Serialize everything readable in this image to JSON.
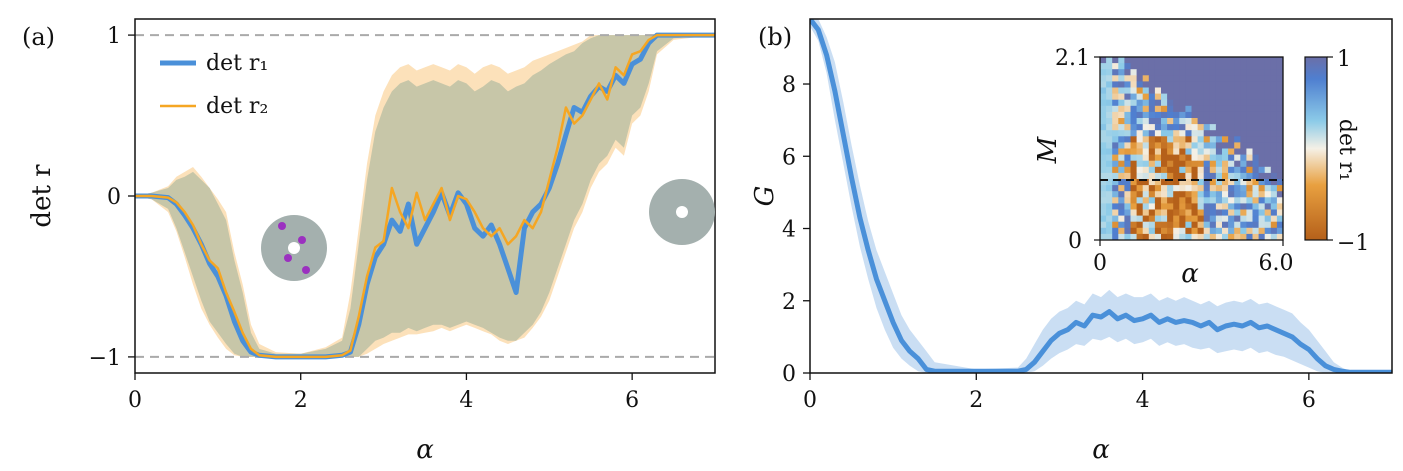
{
  "colors": {
    "blue": "#4a90d9",
    "orange": "#f5a623",
    "blue_band": "#b8d3ef",
    "orange_band": "#fbdcae",
    "overlap_band": "#c7c6a8",
    "dashed": "#aaaaaa",
    "disk": "#a4b0ae",
    "defect": "#9b30c0"
  },
  "chart_data": [
    {
      "id": "a",
      "type": "line",
      "panel_label": "(a)",
      "xlabel": "α",
      "ylabel": "det r",
      "xlim": [
        0,
        7
      ],
      "ylim": [
        -1.1,
        1.1
      ],
      "xticks": [
        0,
        2,
        4,
        6
      ],
      "xtick_labels": [
        "0",
        "2",
        "4",
        "6"
      ],
      "yticks": [
        -1,
        0,
        1
      ],
      "ytick_labels": [
        "−1",
        "0",
        "1"
      ],
      "reference_lines": [
        1,
        -1
      ],
      "legend": "top-left",
      "x": [
        0,
        0.2,
        0.4,
        0.5,
        0.6,
        0.7,
        0.8,
        0.9,
        1.0,
        1.1,
        1.2,
        1.3,
        1.4,
        1.5,
        1.7,
        2.0,
        2.3,
        2.5,
        2.6,
        2.7,
        2.8,
        2.9,
        3.0,
        3.1,
        3.2,
        3.3,
        3.4,
        3.5,
        3.6,
        3.7,
        3.8,
        3.9,
        4.0,
        4.1,
        4.2,
        4.3,
        4.4,
        4.5,
        4.6,
        4.7,
        4.8,
        4.9,
        5.0,
        5.1,
        5.2,
        5.3,
        5.4,
        5.5,
        5.6,
        5.7,
        5.8,
        5.9,
        6.0,
        6.1,
        6.2,
        6.3,
        6.5,
        7.0
      ],
      "series": [
        {
          "name": "det r₁",
          "values": [
            0,
            0,
            -0.01,
            -0.05,
            -0.12,
            -0.2,
            -0.3,
            -0.42,
            -0.5,
            -0.62,
            -0.78,
            -0.9,
            -0.97,
            -0.99,
            -1,
            -1,
            -1,
            -0.99,
            -0.97,
            -0.8,
            -0.55,
            -0.38,
            -0.3,
            -0.15,
            -0.22,
            -0.05,
            -0.3,
            -0.2,
            -0.1,
            0.02,
            -0.12,
            0.02,
            -0.05,
            -0.2,
            -0.25,
            -0.18,
            -0.3,
            -0.45,
            -0.6,
            -0.2,
            -0.1,
            -0.05,
            0.05,
            0.2,
            0.38,
            0.55,
            0.52,
            0.62,
            0.68,
            0.65,
            0.75,
            0.7,
            0.82,
            0.85,
            0.95,
            1,
            1,
            1
          ],
          "band_lower": [
            0,
            -0.02,
            -0.08,
            -0.2,
            -0.35,
            -0.5,
            -0.65,
            -0.78,
            -0.85,
            -0.92,
            -0.98,
            -1,
            -1,
            -1,
            -1,
            -1,
            -1,
            -1,
            -1,
            -1,
            -0.95,
            -0.9,
            -0.88,
            -0.85,
            -0.85,
            -0.82,
            -0.84,
            -0.82,
            -0.8,
            -0.8,
            -0.82,
            -0.8,
            -0.78,
            -0.8,
            -0.82,
            -0.85,
            -0.88,
            -0.9,
            -0.9,
            -0.85,
            -0.8,
            -0.72,
            -0.6,
            -0.45,
            -0.3,
            -0.15,
            -0.05,
            0.1,
            0.2,
            0.25,
            0.35,
            0.3,
            0.5,
            0.55,
            0.7,
            0.9,
            0.98,
            1
          ],
          "band_upper": [
            0,
            0.02,
            0.05,
            0.1,
            0.12,
            0.15,
            0.1,
            0.05,
            -0.05,
            -0.15,
            -0.4,
            -0.6,
            -0.85,
            -0.95,
            -0.98,
            -0.98,
            -0.95,
            -0.9,
            -0.7,
            -0.3,
            0.1,
            0.4,
            0.55,
            0.65,
            0.7,
            0.72,
            0.68,
            0.7,
            0.72,
            0.7,
            0.68,
            0.72,
            0.7,
            0.65,
            0.68,
            0.72,
            0.7,
            0.65,
            0.68,
            0.7,
            0.75,
            0.78,
            0.82,
            0.85,
            0.88,
            0.9,
            0.95,
            0.98,
            1,
            1,
            1,
            1,
            1,
            1,
            1,
            1,
            1,
            1
          ]
        },
        {
          "name": "det r₂",
          "values": [
            0,
            0,
            -0.01,
            -0.04,
            -0.1,
            -0.18,
            -0.3,
            -0.4,
            -0.45,
            -0.6,
            -0.72,
            -0.85,
            -0.95,
            -0.99,
            -1,
            -1,
            -1,
            -0.99,
            -0.96,
            -0.75,
            -0.5,
            -0.32,
            -0.28,
            0.05,
            -0.1,
            -0.2,
            0.02,
            -0.15,
            -0.05,
            0.05,
            -0.15,
            0.0,
            -0.02,
            -0.1,
            -0.2,
            -0.25,
            -0.2,
            -0.3,
            -0.25,
            -0.15,
            -0.2,
            -0.1,
            0.1,
            0.3,
            0.55,
            0.45,
            0.5,
            0.6,
            0.7,
            0.6,
            0.8,
            0.75,
            0.88,
            0.9,
            0.97,
            1,
            1,
            1
          ],
          "band_lower": [
            0,
            -0.02,
            -0.1,
            -0.22,
            -0.38,
            -0.55,
            -0.7,
            -0.8,
            -0.88,
            -0.95,
            -0.99,
            -1,
            -1,
            -1,
            -1,
            -1,
            -1,
            -1,
            -1,
            -1,
            -0.98,
            -0.95,
            -0.92,
            -0.9,
            -0.88,
            -0.86,
            -0.86,
            -0.85,
            -0.84,
            -0.82,
            -0.84,
            -0.82,
            -0.8,
            -0.82,
            -0.84,
            -0.86,
            -0.9,
            -0.92,
            -0.9,
            -0.88,
            -0.82,
            -0.75,
            -0.65,
            -0.5,
            -0.35,
            -0.2,
            -0.1,
            0.05,
            0.15,
            0.2,
            0.3,
            0.25,
            0.45,
            0.5,
            0.65,
            0.88,
            0.97,
            1
          ],
          "band_upper": [
            0,
            0.02,
            0.06,
            0.12,
            0.15,
            0.18,
            0.12,
            0.05,
            -0.02,
            -0.1,
            -0.35,
            -0.55,
            -0.8,
            -0.92,
            -0.97,
            -0.98,
            -0.94,
            -0.88,
            -0.6,
            -0.2,
            0.2,
            0.5,
            0.65,
            0.75,
            0.8,
            0.82,
            0.78,
            0.8,
            0.82,
            0.8,
            0.78,
            0.82,
            0.8,
            0.76,
            0.8,
            0.82,
            0.8,
            0.76,
            0.78,
            0.8,
            0.84,
            0.86,
            0.88,
            0.9,
            0.92,
            0.94,
            0.96,
            1,
            1,
            1,
            1,
            1,
            1,
            1,
            1,
            1,
            1,
            1
          ]
        }
      ]
    },
    {
      "id": "b",
      "type": "line",
      "panel_label": "(b)",
      "xlabel": "α",
      "ylabel": "G",
      "xlim": [
        0,
        7
      ],
      "ylim": [
        0,
        9.8
      ],
      "xticks": [
        0,
        2,
        4,
        6
      ],
      "xtick_labels": [
        "0",
        "2",
        "4",
        "6"
      ],
      "yticks": [
        0,
        2,
        4,
        6,
        8
      ],
      "ytick_labels": [
        "0",
        "2",
        "4",
        "6",
        "8"
      ],
      "x": [
        0,
        0.1,
        0.2,
        0.3,
        0.4,
        0.5,
        0.6,
        0.7,
        0.8,
        0.9,
        1.0,
        1.1,
        1.2,
        1.3,
        1.4,
        1.5,
        2.0,
        2.5,
        2.6,
        2.7,
        2.8,
        2.9,
        3.0,
        3.1,
        3.2,
        3.3,
        3.4,
        3.5,
        3.6,
        3.7,
        3.8,
        3.9,
        4.0,
        4.1,
        4.2,
        4.3,
        4.4,
        4.5,
        4.6,
        4.7,
        4.8,
        4.9,
        5.0,
        5.1,
        5.2,
        5.3,
        5.4,
        5.5,
        5.6,
        5.7,
        5.8,
        5.9,
        6.0,
        6.1,
        6.2,
        6.3,
        6.4,
        6.5,
        7.0
      ],
      "values": [
        9.8,
        9.5,
        8.8,
        7.8,
        6.6,
        5.4,
        4.3,
        3.4,
        2.6,
        2.0,
        1.4,
        0.9,
        0.6,
        0.4,
        0.1,
        0.05,
        0.05,
        0.05,
        0.1,
        0.3,
        0.6,
        0.9,
        1.1,
        1.2,
        1.4,
        1.3,
        1.6,
        1.55,
        1.7,
        1.5,
        1.6,
        1.45,
        1.5,
        1.6,
        1.4,
        1.5,
        1.4,
        1.45,
        1.4,
        1.3,
        1.4,
        1.2,
        1.3,
        1.35,
        1.3,
        1.4,
        1.25,
        1.3,
        1.2,
        1.1,
        1.0,
        0.8,
        0.65,
        0.4,
        0.2,
        0.1,
        0.05,
        0.02,
        0.02
      ],
      "band_lower": [
        9.6,
        9.2,
        8.3,
        7.0,
        5.8,
        4.6,
        3.5,
        2.6,
        1.8,
        1.2,
        0.7,
        0.4,
        0.2,
        0.05,
        0,
        0,
        0,
        0,
        0,
        0.05,
        0.2,
        0.4,
        0.55,
        0.65,
        0.8,
        0.75,
        0.95,
        0.9,
        1.0,
        0.85,
        0.95,
        0.8,
        0.85,
        0.95,
        0.75,
        0.85,
        0.75,
        0.8,
        0.7,
        0.65,
        0.7,
        0.55,
        0.6,
        0.65,
        0.6,
        0.7,
        0.55,
        0.6,
        0.5,
        0.45,
        0.35,
        0.25,
        0.15,
        0.05,
        0,
        0,
        0,
        0,
        0
      ],
      "band_upper": [
        9.9,
        9.8,
        9.3,
        8.6,
        7.5,
        6.3,
        5.2,
        4.2,
        3.4,
        2.8,
        2.2,
        1.6,
        1.2,
        0.9,
        0.6,
        0.3,
        0.1,
        0.15,
        0.4,
        0.8,
        1.2,
        1.5,
        1.7,
        1.8,
        2.0,
        1.9,
        2.2,
        2.1,
        2.3,
        2.1,
        2.2,
        2.1,
        2.1,
        2.2,
        2.0,
        2.1,
        2.0,
        2.1,
        2.0,
        1.9,
        2.0,
        1.85,
        1.95,
        2.0,
        1.95,
        2.05,
        1.9,
        1.95,
        1.85,
        1.75,
        1.65,
        1.4,
        1.2,
        0.9,
        0.6,
        0.3,
        0.15,
        0.05,
        0.02
      ]
    }
  ],
  "inset": {
    "type": "heatmap",
    "xlabel": "α",
    "ylabel": "M",
    "xtick_labels": [
      "0",
      "6.0"
    ],
    "ytick_labels": [
      "0",
      "2.1"
    ],
    "colorbar_label": "det r₁",
    "colorbar_tick_labels": [
      "1",
      "−1"
    ],
    "xlim": [
      0,
      6.0
    ],
    "ylim": [
      0,
      2.1
    ],
    "dashed_line_M": 0.7,
    "colormap": [
      "#b5601a",
      "#e8a040",
      "#f5f0e6",
      "#8ccbe8",
      "#4f7fd0",
      "#6b6fa8"
    ]
  }
}
